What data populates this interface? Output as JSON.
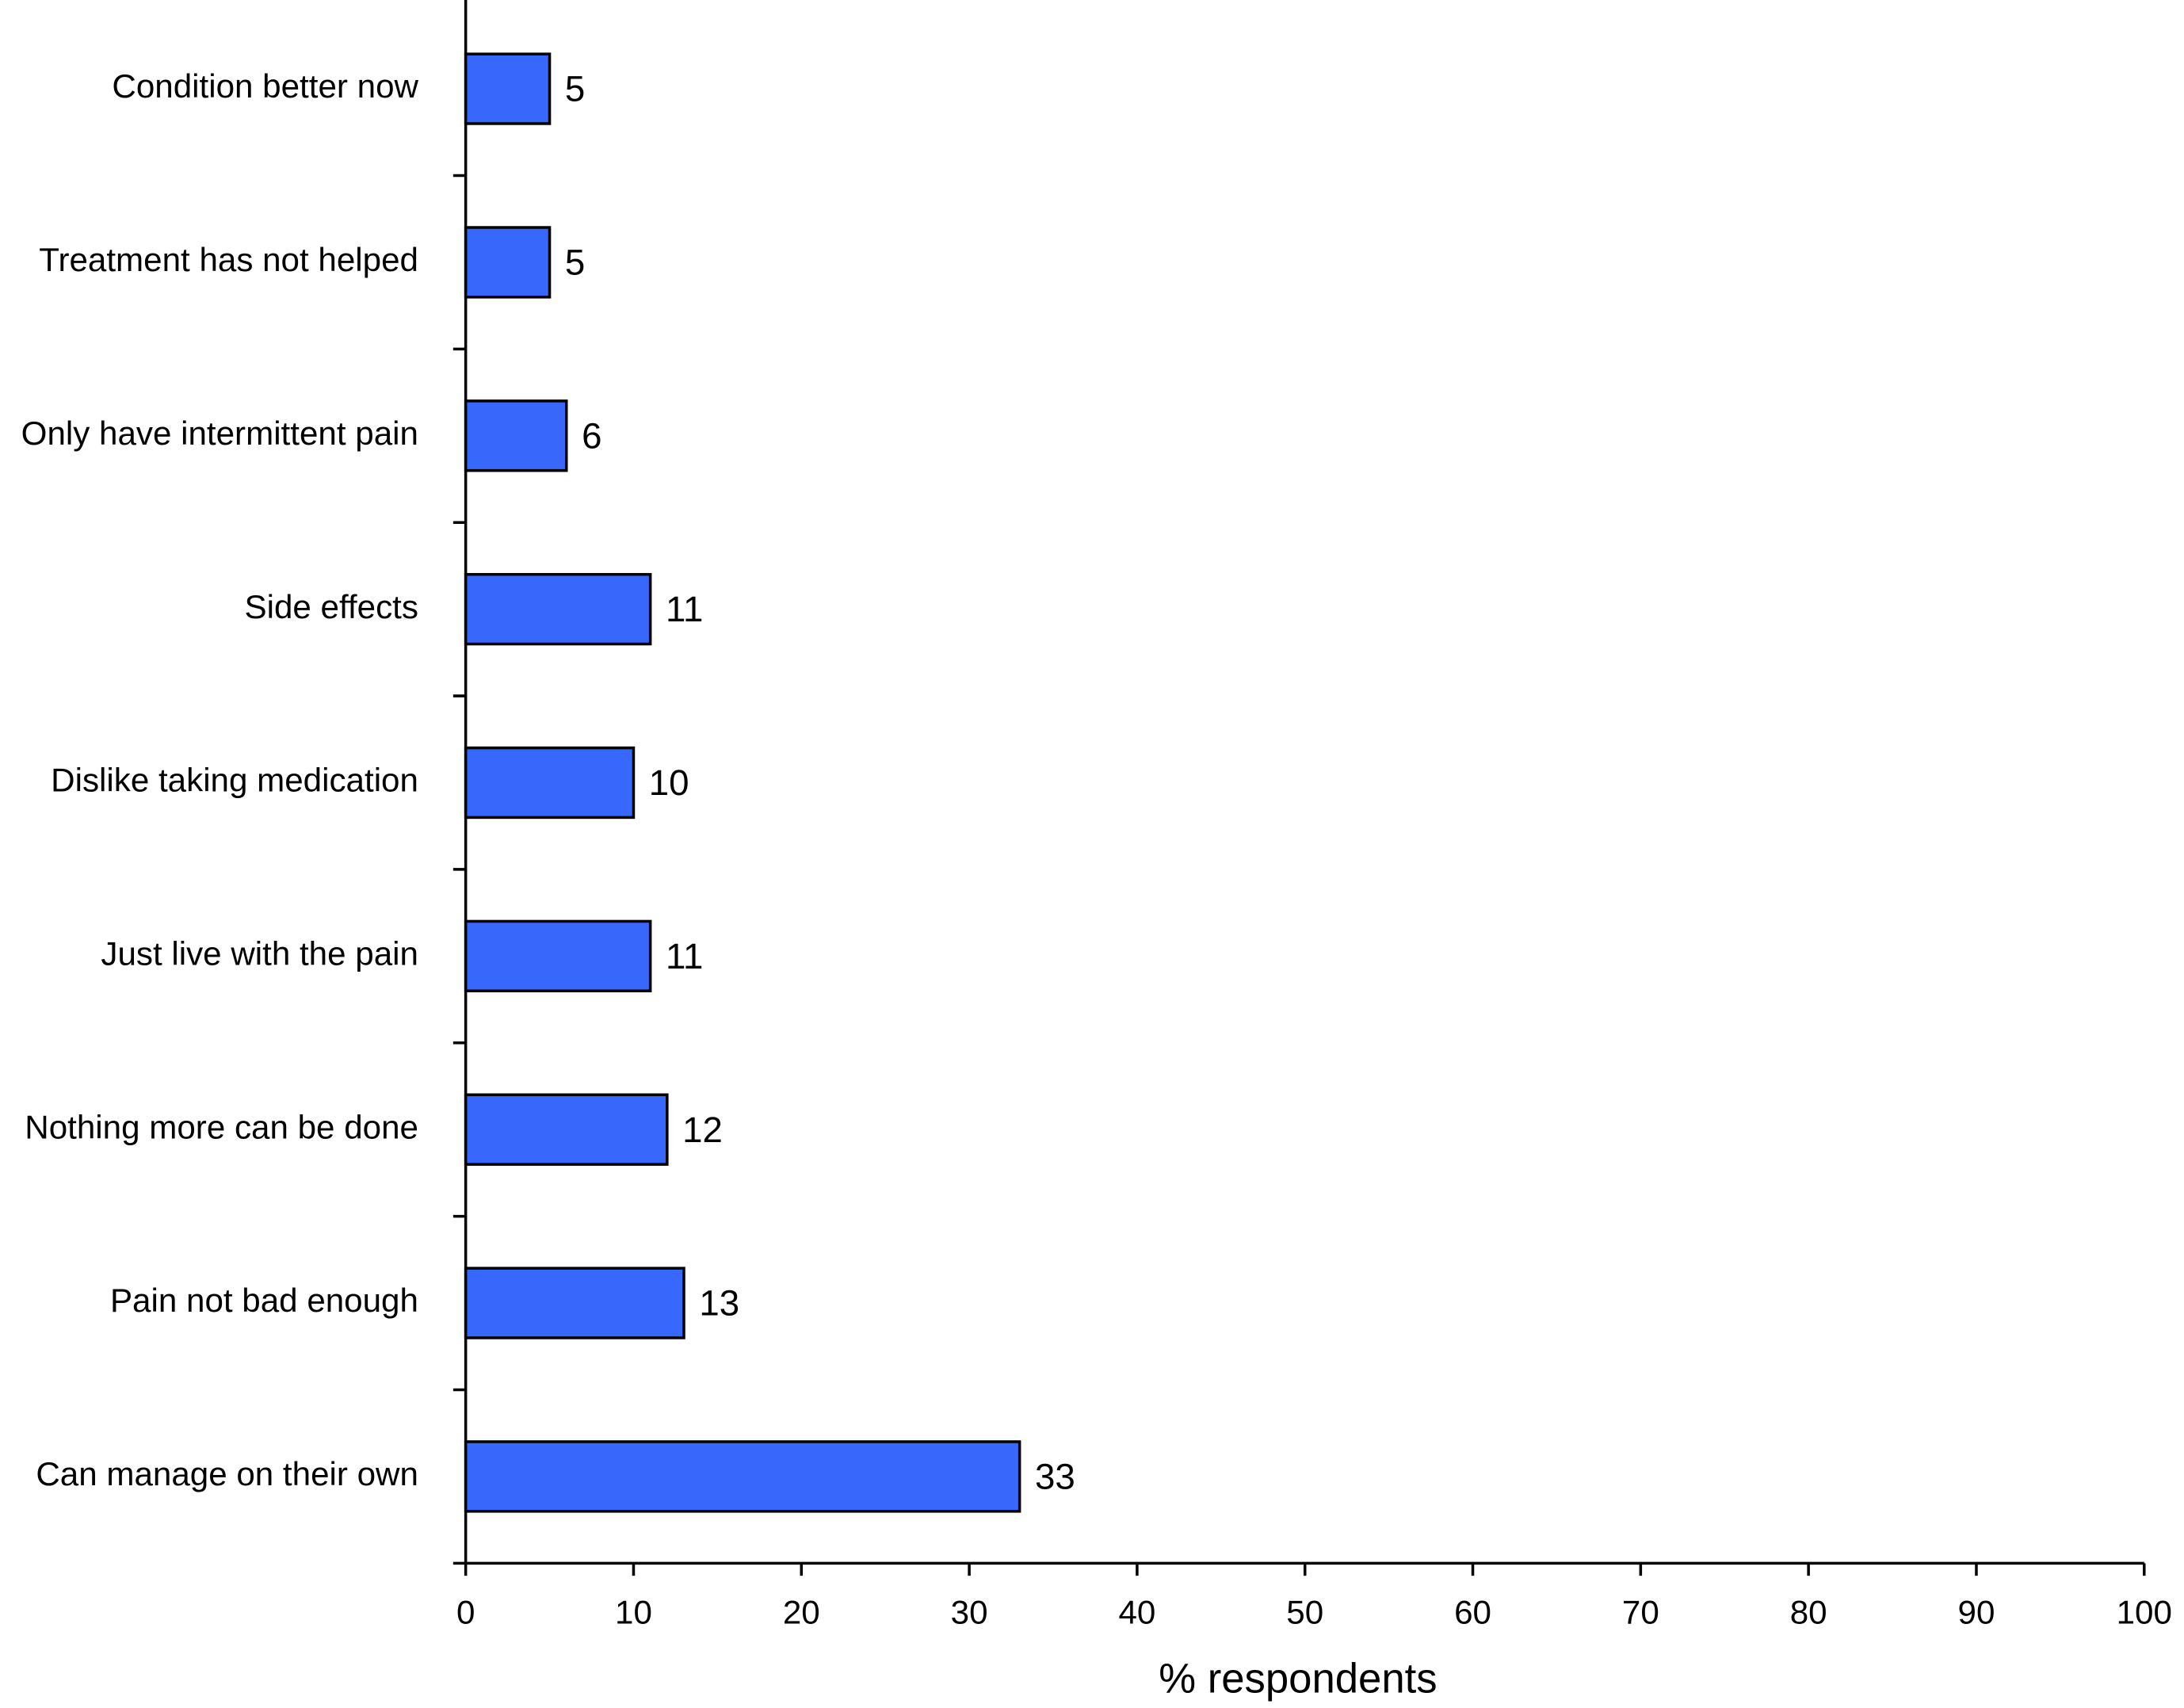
{
  "chart_data": {
    "type": "bar",
    "orientation": "horizontal",
    "x_label": "% respondents",
    "categories": [
      "Condition better now",
      "Treatment has not helped",
      "Only have intermittent pain",
      "Side effects",
      "Dislike taking medication",
      "Just live with the pain",
      "Nothing more can be done",
      "Pain not bad enough",
      "Can manage on their own"
    ],
    "values": [
      5,
      5,
      6,
      11,
      10,
      11,
      12,
      13,
      33
    ],
    "color": "#3868fb",
    "xlim": [
      0,
      100
    ],
    "xticks": [
      0,
      10,
      20,
      30,
      40,
      50,
      60,
      70,
      80,
      90,
      100
    ],
    "grid": false
  }
}
